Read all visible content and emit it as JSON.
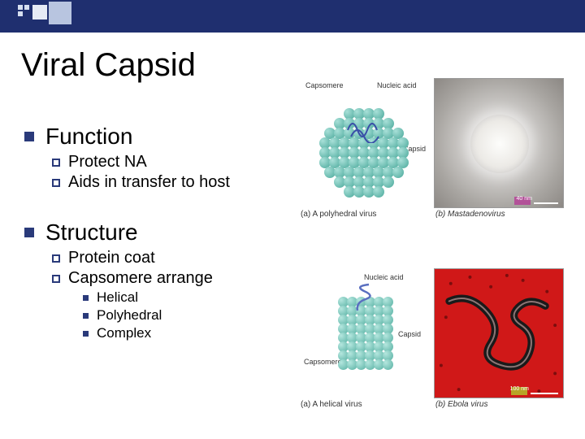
{
  "slide": {
    "title": "Viral Capsid",
    "sections": [
      {
        "heading": "Function",
        "items": [
          {
            "text": "Protect NA"
          },
          {
            "text": "Aids in transfer to host"
          }
        ]
      },
      {
        "heading": "Structure",
        "items": [
          {
            "text": "Protein coat"
          },
          {
            "text": "Capsomere arrange",
            "subitems": [
              {
                "text": "Helical"
              },
              {
                "text": "Polyhedral"
              },
              {
                "text": "Complex"
              }
            ]
          }
        ]
      }
    ]
  },
  "figures": {
    "a": {
      "caption": "(a) A polyhedral virus",
      "labels": {
        "capsomere": "Capsomere",
        "nucleic_acid": "Nucleic acid",
        "capsid": "Capsid"
      },
      "sphere_color_light": "#a8e0d8",
      "sphere_color_dark": "#4aa89a",
      "na_color": "#3a4fa8"
    },
    "b": {
      "caption": "(b) Mastadenovirus",
      "scalebar_text": "40 nm",
      "tem_label": "TEM",
      "bg_color": "#a9a6a2",
      "virion_color": "#fdfdfb"
    },
    "c": {
      "caption": "(a) A helical virus",
      "labels": {
        "nucleic_acid": "Nucleic acid",
        "capsomere": "Capsomere",
        "capsid": "Capsid"
      },
      "sphere_color_light": "#b4e6de",
      "sphere_color_dark": "#56b0a2",
      "na_color": "#5a6fc0"
    },
    "d": {
      "caption": "(b) Ebola virus",
      "scalebar_text": "100 nm",
      "tem_label": "TEM",
      "bg_color": "#d01818",
      "filament_color": "#1a1a1a"
    }
  },
  "theme": {
    "topbar_color": "#1f2f6f",
    "bullet_color": "#2a3a7a",
    "title_fontsize": 40,
    "lvl1_fontsize": 28,
    "lvl2_fontsize": 20,
    "lvl3_fontsize": 17
  }
}
